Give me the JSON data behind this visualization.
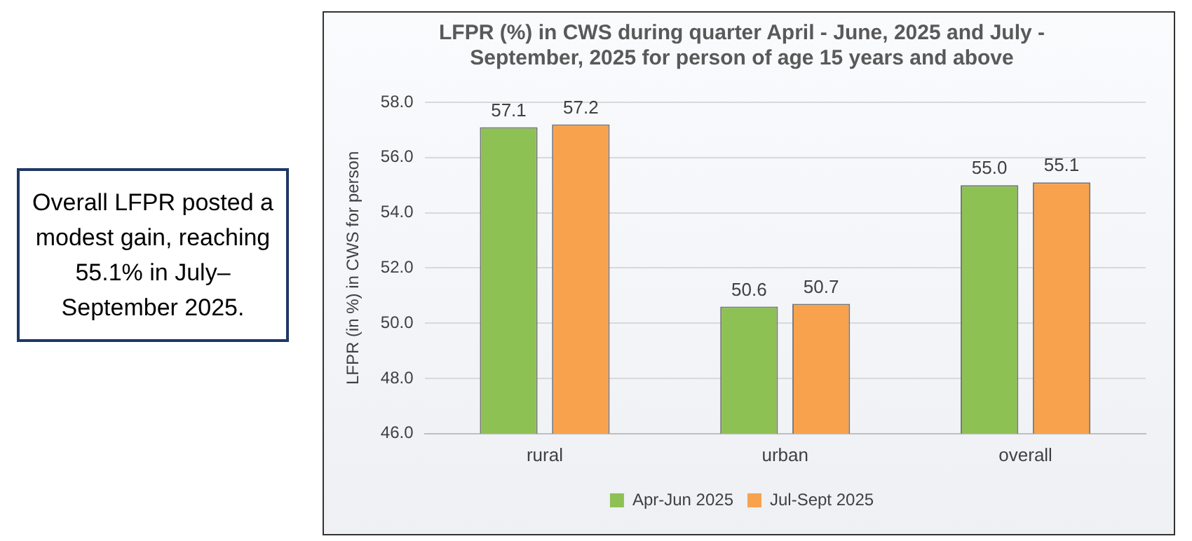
{
  "chart_data": {
    "type": "bar",
    "title": "LFPR (%) in CWS during quarter April - June, 2025 and July - September, 2025 for person of age 15 years and above",
    "ylabel": "LFPR (in %) in CWS for person",
    "categories": [
      "rural",
      "urban",
      "overall"
    ],
    "series": [
      {
        "name": "Apr-Jun 2025",
        "color": "#8dc153",
        "values": [
          57.1,
          50.6,
          55.0
        ],
        "value_labels": [
          "57.1",
          "50.6",
          "55.0"
        ]
      },
      {
        "name": "Jul-Sept 2025",
        "color": "#f8a24e",
        "values": [
          57.2,
          50.7,
          55.1
        ],
        "value_labels": [
          "57.2",
          "50.7",
          "55.1"
        ]
      }
    ],
    "ylim": [
      46,
      58
    ],
    "yticks": [
      {
        "value": 46,
        "label": "46.0"
      },
      {
        "value": 48,
        "label": "48.0"
      },
      {
        "value": 50,
        "label": "50.0"
      },
      {
        "value": 52,
        "label": "52.0"
      },
      {
        "value": 54,
        "label": "54.0"
      },
      {
        "value": 56,
        "label": "56.0"
      },
      {
        "value": 58,
        "label": "58.0"
      }
    ],
    "grid": "y",
    "legend": "bottom",
    "annotations": [
      "Overall LFPR posted a modest gain, reaching 55.1% in July–September 2025."
    ]
  }
}
